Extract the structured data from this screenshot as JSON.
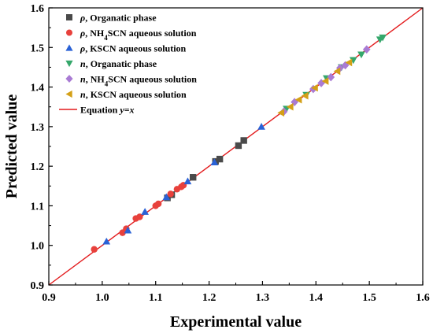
{
  "chart_data": {
    "type": "scatter",
    "xlabel": "Experimental value",
    "ylabel": "Predicted value",
    "xlim": [
      0.9,
      1.6
    ],
    "ylim": [
      0.9,
      1.6
    ],
    "xticks": [
      "0.9",
      "1.0",
      "1.1",
      "1.2",
      "1.3",
      "1.4",
      "1.5",
      "1.6"
    ],
    "yticks": [
      "0.9",
      "1.0",
      "1.1",
      "1.2",
      "1.3",
      "1.4",
      "1.5",
      "1.6"
    ],
    "grid": false,
    "legend_position": "top-left",
    "series": [
      {
        "name_html": "<tspan font-style='italic'>ρ</tspan>, Organatic phase",
        "marker": "square",
        "color": "#4a4a4a",
        "points": [
          [
            1.122,
            1.12
          ],
          [
            1.13,
            1.128
          ],
          [
            1.17,
            1.172
          ],
          [
            1.212,
            1.212
          ],
          [
            1.22,
            1.218
          ],
          [
            1.255,
            1.252
          ],
          [
            1.265,
            1.265
          ]
        ]
      },
      {
        "name_html": "<tspan font-style='italic'>ρ</tspan>, NH<tspan baseline-shift='sub' font-size='9'>4</tspan>SCN aqueous solution",
        "marker": "circle",
        "color": "#e8413c",
        "points": [
          [
            0.985,
            0.99
          ],
          [
            1.038,
            1.032
          ],
          [
            1.045,
            1.042
          ],
          [
            1.063,
            1.068
          ],
          [
            1.07,
            1.072
          ],
          [
            1.1,
            1.1
          ],
          [
            1.105,
            1.105
          ],
          [
            1.128,
            1.13
          ],
          [
            1.14,
            1.142
          ],
          [
            1.148,
            1.148
          ],
          [
            1.152,
            1.152
          ]
        ]
      },
      {
        "name_html": "<tspan font-style='italic'>ρ</tspan>, KSCN aqueous solution",
        "marker": "triangle-up",
        "color": "#2a62d6",
        "points": [
          [
            1.008,
            1.01
          ],
          [
            1.048,
            1.038
          ],
          [
            1.08,
            1.085
          ],
          [
            1.12,
            1.122
          ],
          [
            1.16,
            1.162
          ],
          [
            1.21,
            1.21
          ],
          [
            1.298,
            1.3
          ]
        ]
      },
      {
        "name_html": "<tspan font-style='italic'>n</tspan>, Organatic phase",
        "marker": "triangle-down",
        "color": "#35a76b",
        "points": [
          [
            1.345,
            1.345
          ],
          [
            1.382,
            1.38
          ],
          [
            1.42,
            1.422
          ],
          [
            1.448,
            1.45
          ],
          [
            1.47,
            1.468
          ],
          [
            1.485,
            1.482
          ],
          [
            1.52,
            1.52
          ],
          [
            1.525,
            1.525
          ]
        ]
      },
      {
        "name_html": "<tspan font-style='italic'>n</tspan>, NH<tspan baseline-shift='sub' font-size='9'>4</tspan>SCN aqueous solution",
        "marker": "diamond",
        "color": "#a97bd4",
        "points": [
          [
            1.34,
            1.338
          ],
          [
            1.36,
            1.362
          ],
          [
            1.395,
            1.395
          ],
          [
            1.41,
            1.41
          ],
          [
            1.428,
            1.425
          ],
          [
            1.445,
            1.448
          ],
          [
            1.455,
            1.455
          ],
          [
            1.495,
            1.495
          ]
        ]
      },
      {
        "name_html": "<tspan font-style='italic'>n</tspan>, KSCN aqueous solution",
        "marker": "triangle-left",
        "color": "#d4a017",
        "points": [
          [
            1.335,
            1.335
          ],
          [
            1.352,
            1.35
          ],
          [
            1.368,
            1.368
          ],
          [
            1.38,
            1.378
          ],
          [
            1.398,
            1.398
          ],
          [
            1.418,
            1.415
          ],
          [
            1.44,
            1.44
          ],
          [
            1.462,
            1.462
          ]
        ]
      }
    ],
    "reference_line": {
      "name_html": "Equation <tspan font-style='italic'>y</tspan>=<tspan font-style='italic'>x</tspan>",
      "color": "#e31a1c",
      "from": [
        0.9,
        0.9
      ],
      "to": [
        1.6,
        1.6
      ]
    }
  }
}
